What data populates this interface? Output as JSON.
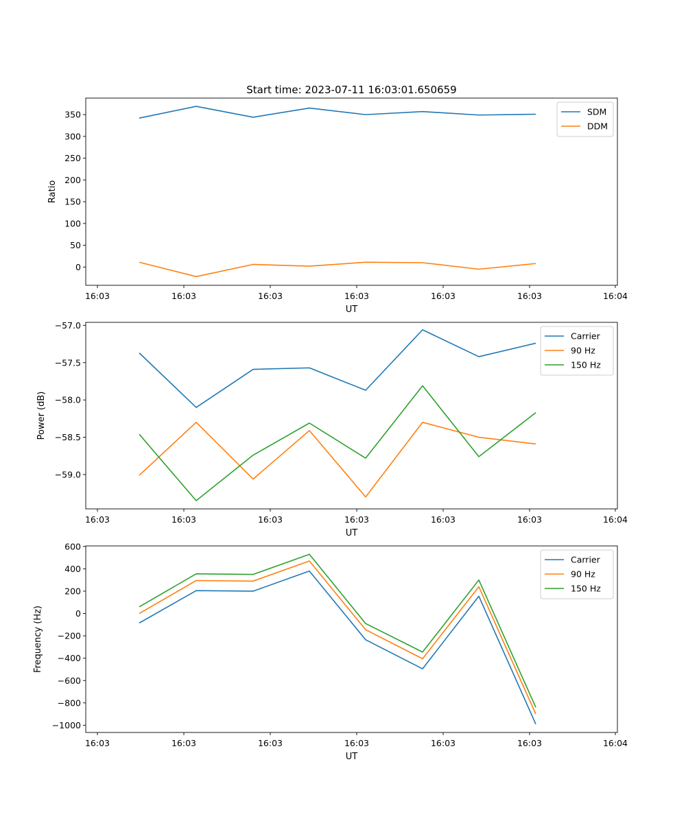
{
  "figure": {
    "title": "Start time: 2023-07-11 16:03:01.650659"
  },
  "chart_data": [
    {
      "type": "line",
      "title": "Start time: 2023-07-11 16:03:01.650659",
      "xlabel": "UT",
      "ylabel": "Ratio",
      "ylim": [
        -42,
        388
      ],
      "yticks": [
        0,
        50,
        100,
        150,
        200,
        250,
        300,
        350
      ],
      "xticks": [
        "16:03",
        "16:03",
        "16:03",
        "16:03",
        "16:03",
        "16:03",
        "16:04"
      ],
      "grid": false,
      "legend": "top-right",
      "x": [
        1,
        2,
        3,
        4,
        5,
        6,
        7,
        8
      ],
      "series": [
        {
          "name": "SDM",
          "color": "#1f77b4",
          "values": [
            342,
            369,
            344,
            365,
            350,
            357,
            349,
            351
          ]
        },
        {
          "name": "DDM",
          "color": "#ff7f0e",
          "values": [
            11,
            -22,
            6,
            2,
            11,
            10,
            -5,
            8
          ]
        }
      ]
    },
    {
      "type": "line",
      "title": "",
      "xlabel": "UT",
      "ylabel": "Power (dB)",
      "ylim": [
        -59.46,
        -56.96
      ],
      "yticks": [
        -59.0,
        -58.5,
        -58.0,
        -57.5,
        -57.0
      ],
      "xticks": [
        "16:03",
        "16:03",
        "16:03",
        "16:03",
        "16:03",
        "16:03",
        "16:04"
      ],
      "grid": false,
      "legend": "top-right",
      "x": [
        1,
        2,
        3,
        4,
        5,
        6,
        7,
        8
      ],
      "series": [
        {
          "name": "Carrier",
          "color": "#1f77b4",
          "values": [
            -57.37,
            -58.1,
            -57.59,
            -57.57,
            -57.87,
            -57.06,
            -57.42,
            -57.24
          ]
        },
        {
          "name": "90 Hz",
          "color": "#ff7f0e",
          "values": [
            -59.01,
            -58.3,
            -59.06,
            -58.41,
            -59.3,
            -58.3,
            -58.5,
            -58.59
          ]
        },
        {
          "name": "150 Hz",
          "color": "#2ca02c",
          "values": [
            -58.46,
            -59.35,
            -58.74,
            -58.31,
            -58.78,
            -57.81,
            -58.76,
            -58.17
          ]
        }
      ]
    },
    {
      "type": "line",
      "title": "",
      "xlabel": "UT",
      "ylabel": "Frequency (Hz)",
      "ylim": [
        -1065,
        605
      ],
      "yticks": [
        -1000,
        -800,
        -600,
        -400,
        -200,
        0,
        200,
        400,
        600
      ],
      "xticks": [
        "16:03",
        "16:03",
        "16:03",
        "16:03",
        "16:03",
        "16:03",
        "16:04"
      ],
      "grid": false,
      "legend": "top-right",
      "x": [
        1,
        2,
        3,
        4,
        5,
        6,
        7,
        8
      ],
      "series": [
        {
          "name": "Carrier",
          "color": "#1f77b4",
          "values": [
            -85,
            205,
            200,
            380,
            -235,
            -495,
            155,
            -990
          ]
        },
        {
          "name": "90 Hz",
          "color": "#ff7f0e",
          "values": [
            0,
            295,
            290,
            470,
            -145,
            -405,
            240,
            -900
          ]
        },
        {
          "name": "150 Hz",
          "color": "#2ca02c",
          "values": [
            60,
            355,
            350,
            530,
            -90,
            -345,
            300,
            -840
          ]
        }
      ]
    }
  ]
}
